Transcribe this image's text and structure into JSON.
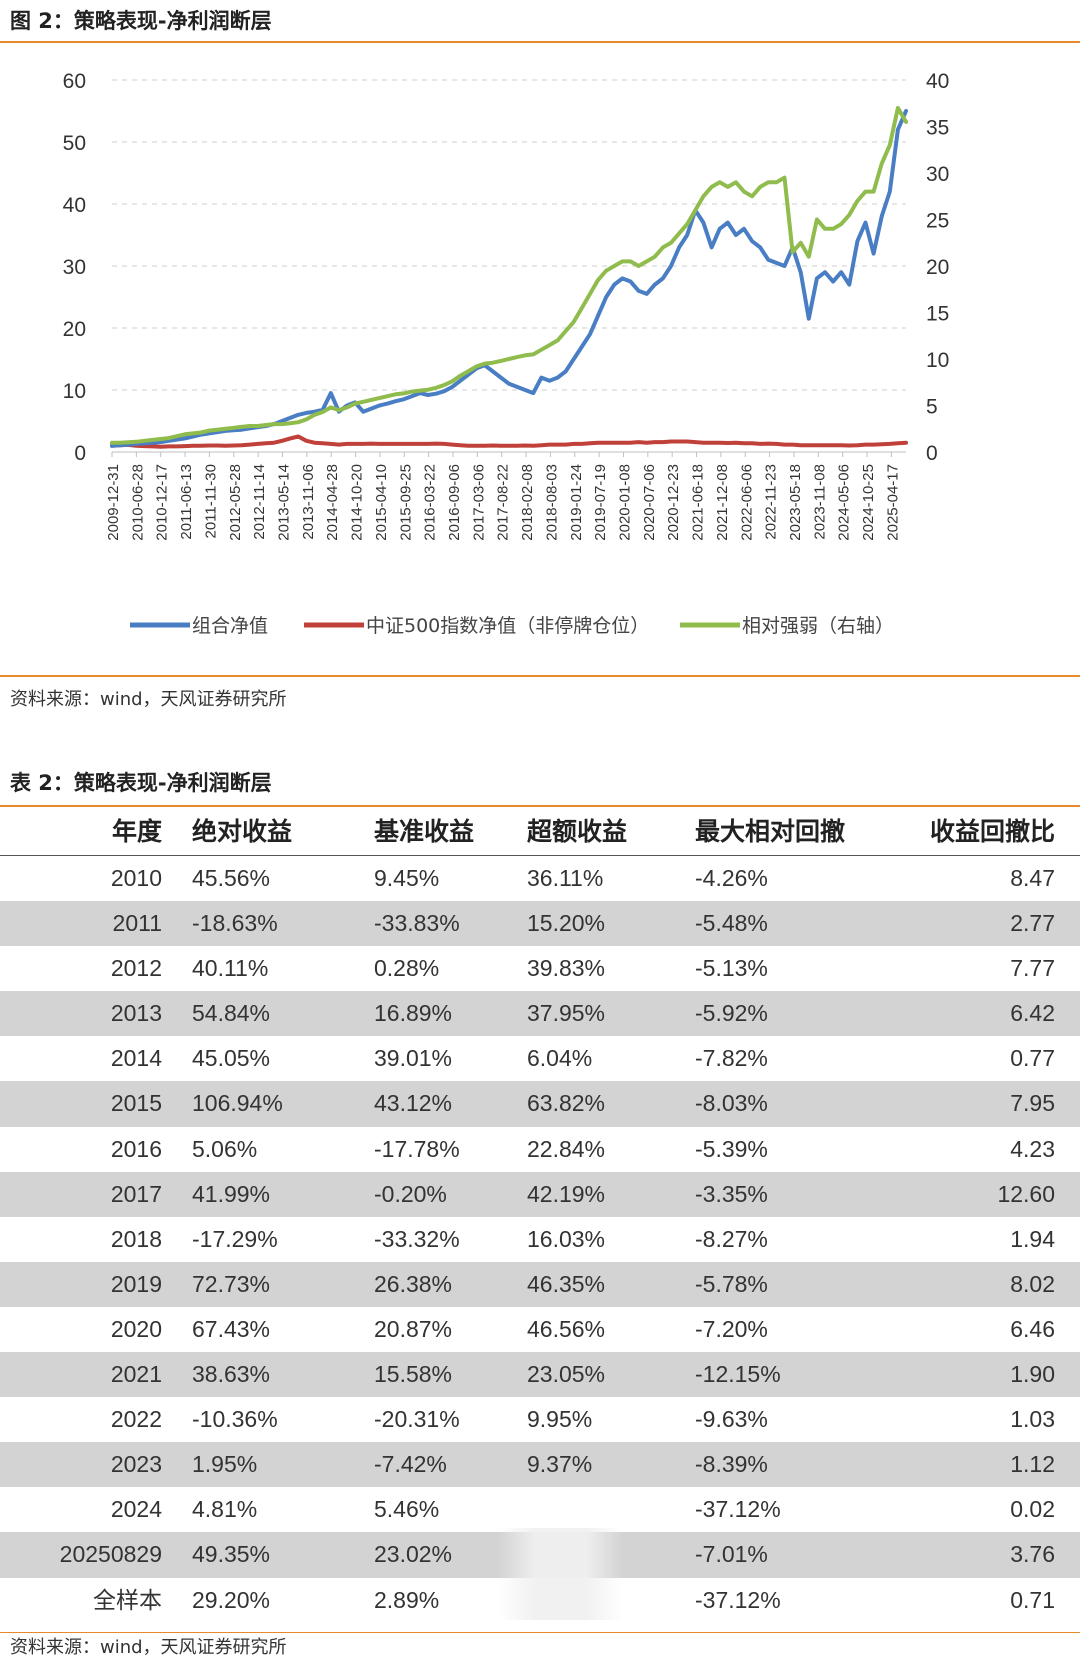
{
  "figure": {
    "title": "图 2：策略表现-净利润断层",
    "source": "资料来源：wind，天风证券研究所"
  },
  "chart_data": {
    "type": "line",
    "title": "",
    "xlabel": "",
    "ylabel": "",
    "y_left_lim": [
      0,
      60
    ],
    "y_left_ticks": [
      0,
      10,
      20,
      30,
      40,
      50,
      60
    ],
    "y_right_lim": [
      0,
      40
    ],
    "y_right_ticks": [
      0,
      5,
      10,
      15,
      20,
      25,
      30,
      35,
      40
    ],
    "grid": "horizontal dashed",
    "legend_position": "bottom",
    "x_tick_labels": [
      "2009-12-31",
      "2010-06-28",
      "2010-12-17",
      "2011-06-13",
      "2011-11-30",
      "2012-05-28",
      "2012-11-14",
      "2013-05-14",
      "2013-11-06",
      "2014-04-28",
      "2014-10-20",
      "2015-04-10",
      "2015-09-25",
      "2016-03-22",
      "2016-09-06",
      "2017-03-06",
      "2017-08-22",
      "2018-02-08",
      "2018-08-03",
      "2019-01-24",
      "2019-07-19",
      "2020-01-08",
      "2020-07-06",
      "2020-12-23",
      "2021-06-18",
      "2021-12-08",
      "2022-06-06",
      "2022-11-23",
      "2023-05-18",
      "2023-11-08",
      "2024-05-06",
      "2024-10-25",
      "2025-04-17"
    ],
    "series": [
      {
        "name": "组合净值",
        "axis": "left",
        "color": "#4a7ec4",
        "values": [
          1.0,
          1.1,
          1.2,
          1.3,
          1.4,
          1.5,
          1.6,
          1.8,
          2.0,
          2.2,
          2.5,
          2.8,
          3.0,
          3.2,
          3.4,
          3.5,
          3.6,
          3.8,
          4.0,
          4.2,
          4.5,
          5.0,
          5.5,
          6.0,
          6.3,
          6.5,
          6.8,
          9.5,
          6.5,
          7.5,
          8.0,
          6.5,
          7.0,
          7.5,
          7.8,
          8.2,
          8.5,
          9.0,
          9.5,
          9.2,
          9.4,
          9.8,
          10.5,
          11.5,
          12.5,
          13.5,
          14.0,
          13.0,
          12.0,
          11.0,
          10.5,
          10.0,
          9.5,
          12.0,
          11.5,
          12.0,
          13.0,
          15.0,
          17.0,
          19.0,
          22.0,
          25.0,
          27.0,
          28.0,
          27.5,
          26.0,
          25.5,
          27.0,
          28.0,
          30.0,
          33.0,
          35.0,
          39.0,
          37.0,
          33.0,
          36.0,
          37.0,
          35.0,
          36.0,
          34.0,
          33.0,
          31.0,
          30.5,
          30.0,
          33.0,
          29.0,
          21.5,
          28.0,
          29.0,
          27.5,
          29.0,
          27.0,
          34.0,
          37.0,
          32.0,
          38.0,
          42.0,
          52.0,
          55.0
        ]
      },
      {
        "name": "中证500指数净值（非停牌仓位）",
        "axis": "left",
        "color": "#c0403a",
        "values": [
          1.0,
          1.1,
          1.15,
          1.0,
          0.95,
          0.9,
          0.85,
          0.9,
          0.9,
          0.95,
          1.0,
          1.0,
          1.05,
          1.05,
          1.0,
          1.05,
          1.1,
          1.2,
          1.3,
          1.4,
          1.5,
          1.8,
          2.2,
          2.5,
          1.8,
          1.5,
          1.4,
          1.3,
          1.2,
          1.3,
          1.3,
          1.3,
          1.35,
          1.3,
          1.3,
          1.3,
          1.3,
          1.3,
          1.3,
          1.3,
          1.35,
          1.3,
          1.2,
          1.1,
          1.0,
          1.0,
          1.0,
          1.05,
          1.0,
          1.0,
          1.0,
          1.05,
          1.0,
          1.1,
          1.2,
          1.2,
          1.2,
          1.3,
          1.3,
          1.4,
          1.5,
          1.5,
          1.5,
          1.5,
          1.5,
          1.6,
          1.5,
          1.6,
          1.6,
          1.7,
          1.7,
          1.7,
          1.6,
          1.5,
          1.5,
          1.5,
          1.45,
          1.5,
          1.4,
          1.4,
          1.3,
          1.35,
          1.3,
          1.2,
          1.2,
          1.1,
          1.1,
          1.1,
          1.1,
          1.1,
          1.1,
          1.05,
          1.1,
          1.2,
          1.2,
          1.25,
          1.3,
          1.4,
          1.5
        ]
      },
      {
        "name": "相对强弱（右轴）",
        "axis": "right",
        "color": "#8fbc4c",
        "values": [
          1.0,
          1.0,
          1.05,
          1.1,
          1.2,
          1.3,
          1.4,
          1.5,
          1.7,
          1.9,
          2.0,
          2.1,
          2.3,
          2.4,
          2.5,
          2.6,
          2.7,
          2.8,
          2.8,
          2.9,
          3.0,
          3.0,
          3.1,
          3.2,
          3.5,
          4.0,
          4.3,
          4.8,
          4.5,
          4.8,
          5.2,
          5.4,
          5.6,
          5.8,
          6.0,
          6.2,
          6.3,
          6.5,
          6.6,
          6.7,
          6.9,
          7.2,
          7.6,
          8.2,
          8.7,
          9.2,
          9.5,
          9.6,
          9.8,
          10.0,
          10.2,
          10.4,
          10.5,
          11.0,
          11.5,
          12.0,
          13.0,
          14.0,
          15.5,
          17.0,
          18.5,
          19.5,
          20.0,
          20.5,
          20.5,
          20.0,
          20.5,
          21.0,
          22.0,
          22.5,
          23.5,
          24.5,
          26.0,
          27.5,
          28.5,
          29.0,
          28.5,
          29.0,
          28.0,
          27.5,
          28.5,
          29.0,
          29.0,
          29.5,
          21.5,
          22.5,
          21.0,
          25.0,
          24.0,
          24.0,
          24.5,
          25.5,
          27.0,
          28.0,
          28.0,
          31.0,
          33.0,
          37.0,
          35.5
        ]
      }
    ]
  },
  "table": {
    "title": "表 2：策略表现-净利润断层",
    "headers": [
      "年度",
      "绝对收益",
      "基准收益",
      "超额收益",
      "最大相对回撤",
      "收益回撤比"
    ],
    "rows": [
      [
        "2010",
        "45.56%",
        "9.45%",
        "36.11%",
        "-4.26%",
        "8.47"
      ],
      [
        "2011",
        "-18.63%",
        "-33.83%",
        "15.20%",
        "-5.48%",
        "2.77"
      ],
      [
        "2012",
        "40.11%",
        "0.28%",
        "39.83%",
        "-5.13%",
        "7.77"
      ],
      [
        "2013",
        "54.84%",
        "16.89%",
        "37.95%",
        "-5.92%",
        "6.42"
      ],
      [
        "2014",
        "45.05%",
        "39.01%",
        "6.04%",
        "-7.82%",
        "0.77"
      ],
      [
        "2015",
        "106.94%",
        "43.12%",
        "63.82%",
        "-8.03%",
        "7.95"
      ],
      [
        "2016",
        "5.06%",
        "-17.78%",
        "22.84%",
        "-5.39%",
        "4.23"
      ],
      [
        "2017",
        "41.99%",
        "-0.20%",
        "42.19%",
        "-3.35%",
        "12.60"
      ],
      [
        "2018",
        "-17.29%",
        "-33.32%",
        "16.03%",
        "-8.27%",
        "1.94"
      ],
      [
        "2019",
        "72.73%",
        "26.38%",
        "46.35%",
        "-5.78%",
        "8.02"
      ],
      [
        "2020",
        "67.43%",
        "20.87%",
        "46.56%",
        "-7.20%",
        "6.46"
      ],
      [
        "2021",
        "38.63%",
        "15.58%",
        "23.05%",
        "-12.15%",
        "1.90"
      ],
      [
        "2022",
        "-10.36%",
        "-20.31%",
        "9.95%",
        "-9.63%",
        "1.03"
      ],
      [
        "2023",
        "1.95%",
        "-7.42%",
        "9.37%",
        "-8.39%",
        "1.12"
      ],
      [
        "2024",
        "4.81%",
        "5.46%",
        "",
        "-37.12%",
        "0.02"
      ],
      [
        "20250829",
        "49.35%",
        "23.02%",
        "",
        "-7.01%",
        "3.76"
      ],
      [
        "全样本",
        "29.20%",
        "2.89%",
        "",
        "-37.12%",
        "0.71"
      ]
    ],
    "source": "资料来源：wind，天风证券研究所"
  }
}
